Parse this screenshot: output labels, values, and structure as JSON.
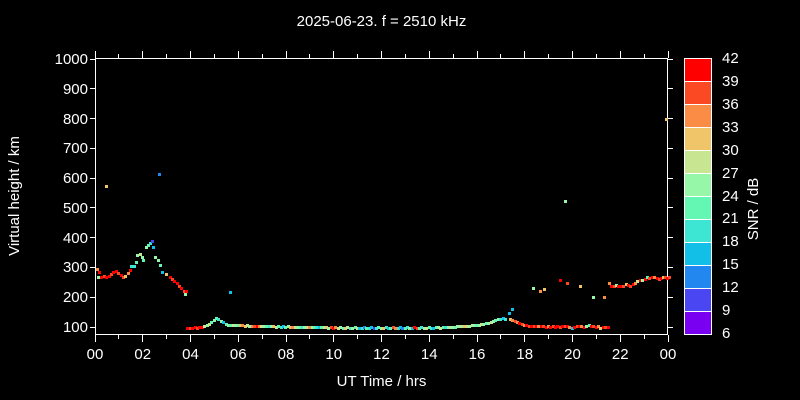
{
  "title": "2025-06-23. f = 2510 kHz",
  "axes": {
    "x_label": "UT Time / hrs",
    "y_label": "Virtual height / km",
    "x_tick_labels": [
      "00",
      "02",
      "04",
      "06",
      "08",
      "10",
      "12",
      "14",
      "16",
      "18",
      "20",
      "22",
      "00"
    ],
    "y_tick_labels": [
      "100",
      "200",
      "300",
      "400",
      "500",
      "600",
      "700",
      "800",
      "900",
      "1000"
    ]
  },
  "colorbar": {
    "label": "SNR / dB",
    "tick_labels": [
      "42",
      "39",
      "36",
      "33",
      "30",
      "27",
      "24",
      "21",
      "18",
      "15",
      "12",
      "9",
      "6"
    ]
  },
  "colors": {
    "background": "#000000",
    "frame": "#ffffff",
    "text": "#ffffff"
  },
  "chart_data": {
    "type": "scatter",
    "title": "2025-06-23. f = 2510 kHz",
    "xlabel": "UT Time / hrs",
    "ylabel": "Virtual height / km",
    "x_range_hours": [
      0,
      24
    ],
    "y_range_km": [
      73,
      1003
    ],
    "x_major_ticks_hours": [
      0,
      2,
      4,
      6,
      8,
      10,
      12,
      14,
      16,
      18,
      20,
      22,
      24
    ],
    "x_minor_ticks_hours": [
      1,
      3,
      5,
      7,
      9,
      11,
      13,
      15,
      17,
      19,
      21,
      23
    ],
    "y_ticks_km": [
      100,
      200,
      300,
      400,
      500,
      600,
      700,
      800,
      900,
      1000
    ],
    "grid": false,
    "legend_position": "right-colorbar",
    "snr_scale_db": {
      "min": 6,
      "max": 42,
      "step": 3
    },
    "palette_low_to_high": [
      "#7a00f2",
      "#4a46f2",
      "#2387f0",
      "#12bfe6",
      "#3ce6d2",
      "#64f7b4",
      "#96f7a8",
      "#c8e691",
      "#f0c469",
      "#fa8c46",
      "#fb4a23",
      "#fe0000"
    ],
    "point_format": [
      "time_hours",
      "virtual_height_km",
      "snr_db"
    ],
    "points": [
      [
        0.05,
        298,
        34
      ],
      [
        0.1,
        271,
        25
      ],
      [
        0.15,
        285,
        40
      ],
      [
        0.25,
        268,
        40
      ],
      [
        0.35,
        272,
        37
      ],
      [
        0.45,
        270,
        40
      ],
      [
        0.55,
        274,
        40
      ],
      [
        0.65,
        280,
        37
      ],
      [
        0.75,
        287,
        40
      ],
      [
        0.85,
        289,
        40
      ],
      [
        0.95,
        284,
        37
      ],
      [
        1.05,
        276,
        40
      ],
      [
        1.15,
        269,
        37
      ],
      [
        1.25,
        272,
        31
      ],
      [
        1.35,
        282,
        34
      ],
      [
        1.45,
        294,
        40
      ],
      [
        1.5,
        308,
        19
      ],
      [
        1.6,
        305,
        19
      ],
      [
        1.7,
        320,
        22
      ],
      [
        1.75,
        342,
        25
      ],
      [
        1.85,
        347,
        28
      ],
      [
        1.95,
        338,
        25
      ],
      [
        2.0,
        326,
        22
      ],
      [
        2.1,
        369,
        25
      ],
      [
        2.2,
        378,
        22
      ],
      [
        2.3,
        385,
        19
      ],
      [
        2.38,
        389,
        10
      ],
      [
        2.4,
        372,
        16
      ],
      [
        2.5,
        336,
        26
      ],
      [
        2.6,
        328,
        25
      ],
      [
        2.7,
        310,
        22
      ],
      [
        2.8,
        288,
        17
      ],
      [
        2.95,
        278,
        31
      ],
      [
        3.1,
        268,
        40
      ],
      [
        3.2,
        262,
        37
      ],
      [
        3.3,
        255,
        40
      ],
      [
        3.4,
        248,
        40
      ],
      [
        3.5,
        241,
        37
      ],
      [
        3.6,
        233,
        40
      ],
      [
        3.7,
        224,
        37
      ],
      [
        3.75,
        214,
        25
      ],
      [
        3.8,
        221,
        40
      ],
      [
        0.45,
        575,
        31
      ],
      [
        2.68,
        617,
        13
      ],
      [
        5.65,
        218,
        16
      ],
      [
        19.66,
        526,
        25
      ],
      [
        23.9,
        800,
        31
      ],
      [
        3.85,
        100,
        40
      ],
      [
        3.95,
        100,
        38
      ],
      [
        4.05,
        100,
        40
      ],
      [
        4.15,
        101,
        40
      ],
      [
        4.25,
        100,
        37
      ],
      [
        4.35,
        101,
        40
      ],
      [
        4.45,
        102,
        40
      ],
      [
        4.55,
        104,
        28
      ],
      [
        4.65,
        107,
        25
      ],
      [
        4.75,
        111,
        28
      ],
      [
        4.85,
        117,
        22
      ],
      [
        4.95,
        125,
        25
      ],
      [
        5.05,
        131,
        22
      ],
      [
        5.15,
        129,
        19
      ],
      [
        5.25,
        123,
        25
      ],
      [
        5.35,
        118,
        16
      ],
      [
        5.45,
        113,
        22
      ],
      [
        5.55,
        110,
        25
      ],
      [
        5.65,
        108,
        22
      ],
      [
        5.75,
        109,
        28
      ],
      [
        5.85,
        108,
        25
      ],
      [
        5.95,
        107,
        22
      ],
      [
        6.05,
        108,
        31
      ],
      [
        6.15,
        107,
        34
      ],
      [
        6.25,
        106,
        31
      ],
      [
        6.35,
        107,
        28
      ],
      [
        6.45,
        106,
        25
      ],
      [
        6.55,
        105,
        34
      ],
      [
        6.65,
        106,
        37
      ],
      [
        6.75,
        105,
        40
      ],
      [
        6.85,
        106,
        34
      ],
      [
        6.95,
        105,
        28
      ],
      [
        7.05,
        104,
        25
      ],
      [
        7.15,
        105,
        22
      ],
      [
        7.25,
        104,
        19
      ],
      [
        7.35,
        105,
        25
      ],
      [
        7.45,
        104,
        31
      ],
      [
        7.55,
        103,
        28
      ],
      [
        7.65,
        104,
        22
      ],
      [
        7.75,
        103,
        19
      ],
      [
        7.85,
        104,
        16
      ],
      [
        7.95,
        103,
        22
      ],
      [
        8.05,
        104,
        25
      ],
      [
        8.15,
        103,
        31
      ],
      [
        8.25,
        103,
        34
      ],
      [
        8.35,
        102,
        28
      ],
      [
        8.45,
        103,
        25
      ],
      [
        8.55,
        102,
        22
      ],
      [
        8.65,
        103,
        19
      ],
      [
        8.75,
        102,
        25
      ],
      [
        8.85,
        102,
        28
      ],
      [
        8.95,
        101,
        34
      ],
      [
        9.05,
        102,
        25
      ],
      [
        9.15,
        101,
        22
      ],
      [
        9.25,
        102,
        19
      ],
      [
        9.35,
        101,
        16
      ],
      [
        9.45,
        102,
        22
      ],
      [
        9.55,
        101,
        28
      ],
      [
        9.65,
        101,
        31
      ],
      [
        9.75,
        100,
        25
      ],
      [
        9.85,
        101,
        37
      ],
      [
        9.95,
        100,
        40
      ],
      [
        10.05,
        101,
        34
      ],
      [
        10.15,
        100,
        28
      ],
      [
        10.25,
        101,
        25
      ],
      [
        10.35,
        100,
        22
      ],
      [
        10.45,
        100,
        31
      ],
      [
        10.55,
        101,
        28
      ],
      [
        10.65,
        100,
        19
      ],
      [
        10.75,
        100,
        25
      ],
      [
        10.85,
        101,
        22
      ],
      [
        10.95,
        100,
        28
      ],
      [
        11.05,
        100,
        16
      ],
      [
        11.15,
        100,
        19
      ],
      [
        11.25,
        101,
        13
      ],
      [
        11.35,
        100,
        22
      ],
      [
        11.45,
        100,
        19
      ],
      [
        11.55,
        101,
        16
      ],
      [
        11.65,
        100,
        10
      ],
      [
        11.75,
        100,
        19
      ],
      [
        11.85,
        101,
        22
      ],
      [
        11.95,
        100,
        25
      ],
      [
        12.05,
        100,
        31
      ],
      [
        12.15,
        101,
        19
      ],
      [
        12.25,
        100,
        16
      ],
      [
        12.35,
        100,
        22
      ],
      [
        12.45,
        101,
        37
      ],
      [
        12.55,
        100,
        34
      ],
      [
        12.65,
        100,
        19
      ],
      [
        12.75,
        101,
        16
      ],
      [
        12.85,
        100,
        13
      ],
      [
        12.95,
        100,
        22
      ],
      [
        13.05,
        101,
        19
      ],
      [
        13.15,
        100,
        25
      ],
      [
        13.25,
        100,
        16
      ],
      [
        13.35,
        101,
        40
      ],
      [
        13.45,
        100,
        37
      ],
      [
        13.55,
        100,
        22
      ],
      [
        13.65,
        101,
        19
      ],
      [
        13.75,
        100,
        25
      ],
      [
        13.85,
        100,
        28
      ],
      [
        13.95,
        101,
        22
      ],
      [
        14.05,
        100,
        19
      ],
      [
        14.15,
        100,
        16
      ],
      [
        14.25,
        101,
        22
      ],
      [
        14.35,
        101,
        25
      ],
      [
        14.45,
        100,
        28
      ],
      [
        14.55,
        101,
        22
      ],
      [
        14.65,
        101,
        19
      ],
      [
        14.75,
        102,
        25
      ],
      [
        14.85,
        102,
        28
      ],
      [
        14.95,
        103,
        25
      ],
      [
        15.05,
        103,
        22
      ],
      [
        15.15,
        104,
        25
      ],
      [
        15.25,
        104,
        28
      ],
      [
        15.35,
        105,
        25
      ],
      [
        15.45,
        105,
        31
      ],
      [
        15.55,
        106,
        28
      ],
      [
        15.65,
        106,
        25
      ],
      [
        15.75,
        107,
        28
      ],
      [
        15.85,
        108,
        25
      ],
      [
        15.95,
        108,
        22
      ],
      [
        16.05,
        110,
        25
      ],
      [
        16.15,
        111,
        28
      ],
      [
        16.25,
        112,
        25
      ],
      [
        16.35,
        114,
        22
      ],
      [
        16.45,
        116,
        25
      ],
      [
        16.55,
        118,
        28
      ],
      [
        16.65,
        121,
        25
      ],
      [
        16.75,
        124,
        22
      ],
      [
        16.85,
        127,
        25
      ],
      [
        16.95,
        130,
        19
      ],
      [
        17.05,
        132,
        16
      ],
      [
        17.15,
        130,
        19
      ],
      [
        17.3,
        150,
        16
      ],
      [
        17.45,
        163,
        16
      ],
      [
        17.35,
        127,
        31
      ],
      [
        17.45,
        124,
        34
      ],
      [
        17.55,
        121,
        37
      ],
      [
        17.65,
        118,
        34
      ],
      [
        17.75,
        114,
        40
      ],
      [
        17.85,
        111,
        37
      ],
      [
        17.95,
        108,
        34
      ],
      [
        18.05,
        107,
        40
      ],
      [
        18.15,
        106,
        37
      ],
      [
        18.25,
        105,
        40
      ],
      [
        18.35,
        104,
        37
      ],
      [
        18.45,
        105,
        40
      ],
      [
        18.55,
        104,
        34
      ],
      [
        18.65,
        105,
        40
      ],
      [
        18.75,
        104,
        37
      ],
      [
        18.85,
        103,
        40
      ],
      [
        18.95,
        104,
        34
      ],
      [
        19.05,
        103,
        40
      ],
      [
        19.15,
        104,
        37
      ],
      [
        19.25,
        103,
        40
      ],
      [
        19.35,
        104,
        40
      ],
      [
        19.45,
        103,
        37
      ],
      [
        19.55,
        104,
        40
      ],
      [
        19.65,
        105,
        37
      ],
      [
        19.75,
        104,
        40
      ],
      [
        19.85,
        103,
        34
      ],
      [
        19.95,
        100,
        16
      ],
      [
        20.05,
        103,
        40
      ],
      [
        20.15,
        104,
        37
      ],
      [
        20.25,
        105,
        40
      ],
      [
        20.35,
        104,
        34
      ],
      [
        20.45,
        103,
        40
      ],
      [
        20.55,
        106,
        25
      ],
      [
        20.65,
        107,
        22
      ],
      [
        20.75,
        105,
        40
      ],
      [
        20.85,
        104,
        37
      ],
      [
        20.95,
        103,
        40
      ],
      [
        21.05,
        104,
        34
      ],
      [
        21.15,
        97,
        31
      ],
      [
        21.25,
        103,
        40
      ],
      [
        21.35,
        102,
        37
      ],
      [
        21.45,
        103,
        40
      ],
      [
        18.33,
        231,
        26
      ],
      [
        18.6,
        224,
        34
      ],
      [
        18.8,
        228,
        31
      ],
      [
        19.45,
        258,
        39
      ],
      [
        19.75,
        251,
        36
      ],
      [
        20.3,
        238,
        31
      ],
      [
        20.85,
        201,
        25
      ],
      [
        21.3,
        201,
        34
      ],
      [
        21.5,
        248,
        34
      ],
      [
        21.6,
        241,
        40
      ],
      [
        21.7,
        238,
        37
      ],
      [
        21.8,
        243,
        25
      ],
      [
        21.9,
        240,
        40
      ],
      [
        22.0,
        238,
        40
      ],
      [
        22.1,
        241,
        37
      ],
      [
        22.2,
        245,
        31
      ],
      [
        22.3,
        243,
        40
      ],
      [
        22.4,
        240,
        37
      ],
      [
        22.5,
        245,
        40
      ],
      [
        22.6,
        250,
        34
      ],
      [
        22.7,
        255,
        28
      ],
      [
        22.8,
        258,
        40
      ],
      [
        22.9,
        261,
        25
      ],
      [
        23.0,
        264,
        40
      ],
      [
        23.1,
        268,
        22
      ],
      [
        23.2,
        266,
        37
      ],
      [
        23.3,
        271,
        40
      ],
      [
        23.4,
        268,
        34
      ],
      [
        23.5,
        265,
        40
      ],
      [
        23.6,
        263,
        37
      ],
      [
        23.7,
        266,
        40
      ],
      [
        23.75,
        271,
        31
      ],
      [
        23.85,
        268,
        37
      ],
      [
        23.95,
        267,
        40
      ],
      [
        24.0,
        270,
        36
      ]
    ]
  }
}
